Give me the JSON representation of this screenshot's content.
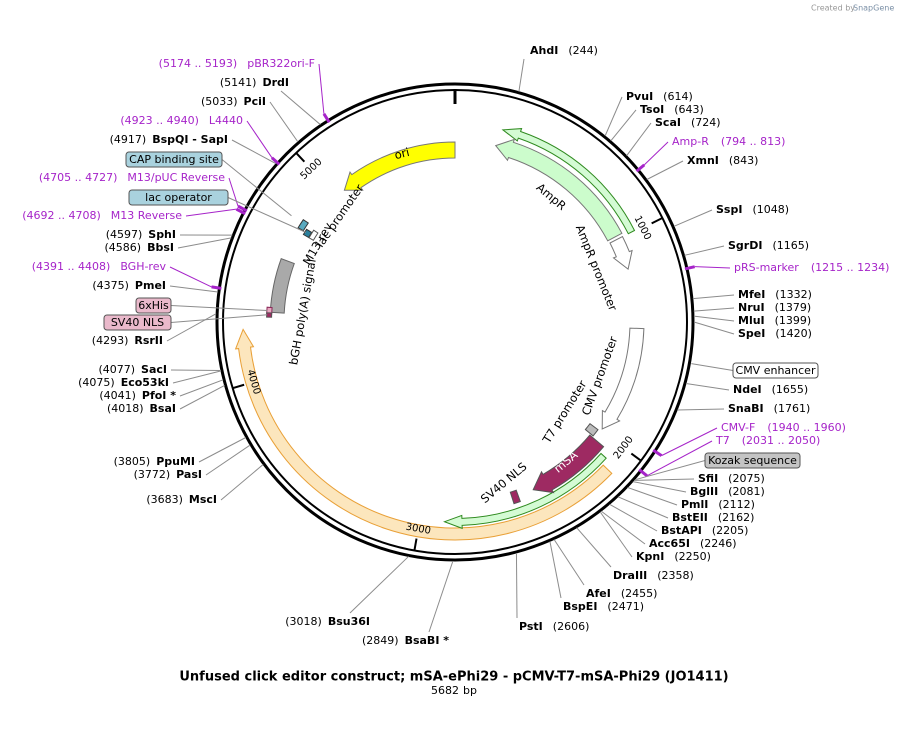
{
  "header": {
    "credit": "Created by",
    "brand": "SnapGene"
  },
  "map": {
    "length": 5682,
    "unit": "bp",
    "ticks": [
      1000,
      2000,
      3000,
      4000,
      5000
    ],
    "sites": [
      {
        "name": "AhdI",
        "position": "(244)"
      },
      {
        "name": "PvuI",
        "position": "(614)"
      },
      {
        "name": "TsoI",
        "position": "(643)"
      },
      {
        "name": "ScaI",
        "position": "(724)"
      },
      {
        "name": "XmnI",
        "position": "(843)"
      },
      {
        "name": "SspI",
        "position": "(1048)"
      },
      {
        "name": "SgrDI",
        "position": "(1165)"
      },
      {
        "name": "MfeI",
        "position": "(1332)"
      },
      {
        "name": "NruI",
        "position": "(1379)"
      },
      {
        "name": "MluI",
        "position": "(1399)"
      },
      {
        "name": "SpeI",
        "position": "(1420)"
      },
      {
        "name": "NdeI",
        "position": "(1655)"
      },
      {
        "name": "SnaBI",
        "position": "(1761)"
      },
      {
        "name": "SfiI",
        "position": "(2075)"
      },
      {
        "name": "BglII",
        "position": "(2081)"
      },
      {
        "name": "PmlI",
        "position": "(2112)"
      },
      {
        "name": "BstEII",
        "position": "(2162)"
      },
      {
        "name": "BstAPI",
        "position": "(2205)"
      },
      {
        "name": "Acc65I",
        "position": "(2246)"
      },
      {
        "name": "KpnI",
        "position": "(2250)"
      },
      {
        "name": "DraIII",
        "position": "(2358)"
      },
      {
        "name": "AfeI",
        "position": "(2455)"
      },
      {
        "name": "BspEI",
        "position": "(2471)"
      },
      {
        "name": "PstI",
        "position": "(2606)"
      },
      {
        "name": "BsaBI *",
        "position": "(2849)"
      },
      {
        "name": "Bsu36I",
        "position": "(3018)"
      },
      {
        "name": "MscI",
        "position": "(3683)"
      },
      {
        "name": "PasI",
        "position": "(3772)"
      },
      {
        "name": "PpuMI",
        "position": "(3805)"
      },
      {
        "name": "BsaI",
        "position": "(4018)"
      },
      {
        "name": "PfoI *",
        "position": "(4041)"
      },
      {
        "name": "Eco53kI",
        "position": "(4075)"
      },
      {
        "name": "SacI",
        "position": "(4077)"
      },
      {
        "name": "RsrII",
        "position": "(4293)"
      },
      {
        "name": "PmeI",
        "position": "(4375)"
      },
      {
        "name": "BbsI",
        "position": "(4586)"
      },
      {
        "name": "SphI",
        "position": "(4597)"
      },
      {
        "name": "BspQI - SapI",
        "position": "(4917)"
      },
      {
        "name": "PciI",
        "position": "(5033)"
      },
      {
        "name": "DrdI",
        "position": "(5141)"
      }
    ],
    "primers": [
      {
        "name": "pBR322ori-F",
        "range": "(5174 .. 5193)"
      },
      {
        "name": "L4440",
        "range": "(4923 .. 4940)"
      },
      {
        "name": "M13/pUC Reverse",
        "range": "(4705 .. 4727)"
      },
      {
        "name": "M13 Reverse",
        "range": "(4692 .. 4708)"
      },
      {
        "name": "BGH-rev",
        "range": "(4391 .. 4408)"
      },
      {
        "name": "Amp-R",
        "range": "(794 .. 813)"
      },
      {
        "name": "pRS-marker",
        "range": "(1215 .. 1234)"
      },
      {
        "name": "CMV-F",
        "range": "(1940 .. 1960)"
      },
      {
        "name": "T7",
        "range": "(2031 .. 2050)"
      }
    ],
    "boxed_features": [
      "CAP binding site",
      "lac operator",
      "6xHis",
      "SV40 NLS",
      "CMV enhancer",
      "Kozak sequence"
    ],
    "features": [
      "ori",
      "AmpR",
      "AmpR promoter",
      "CMV promoter",
      "T7 promoter",
      "mSA",
      "SV40 NLS",
      "bGH poly(A) signal",
      "lac promoter",
      "M13 rev"
    ]
  },
  "title": "Unfused click editor construct; mSA-ePhi29 - pCMV-T7-mSA-Phi29 (JO1411)"
}
